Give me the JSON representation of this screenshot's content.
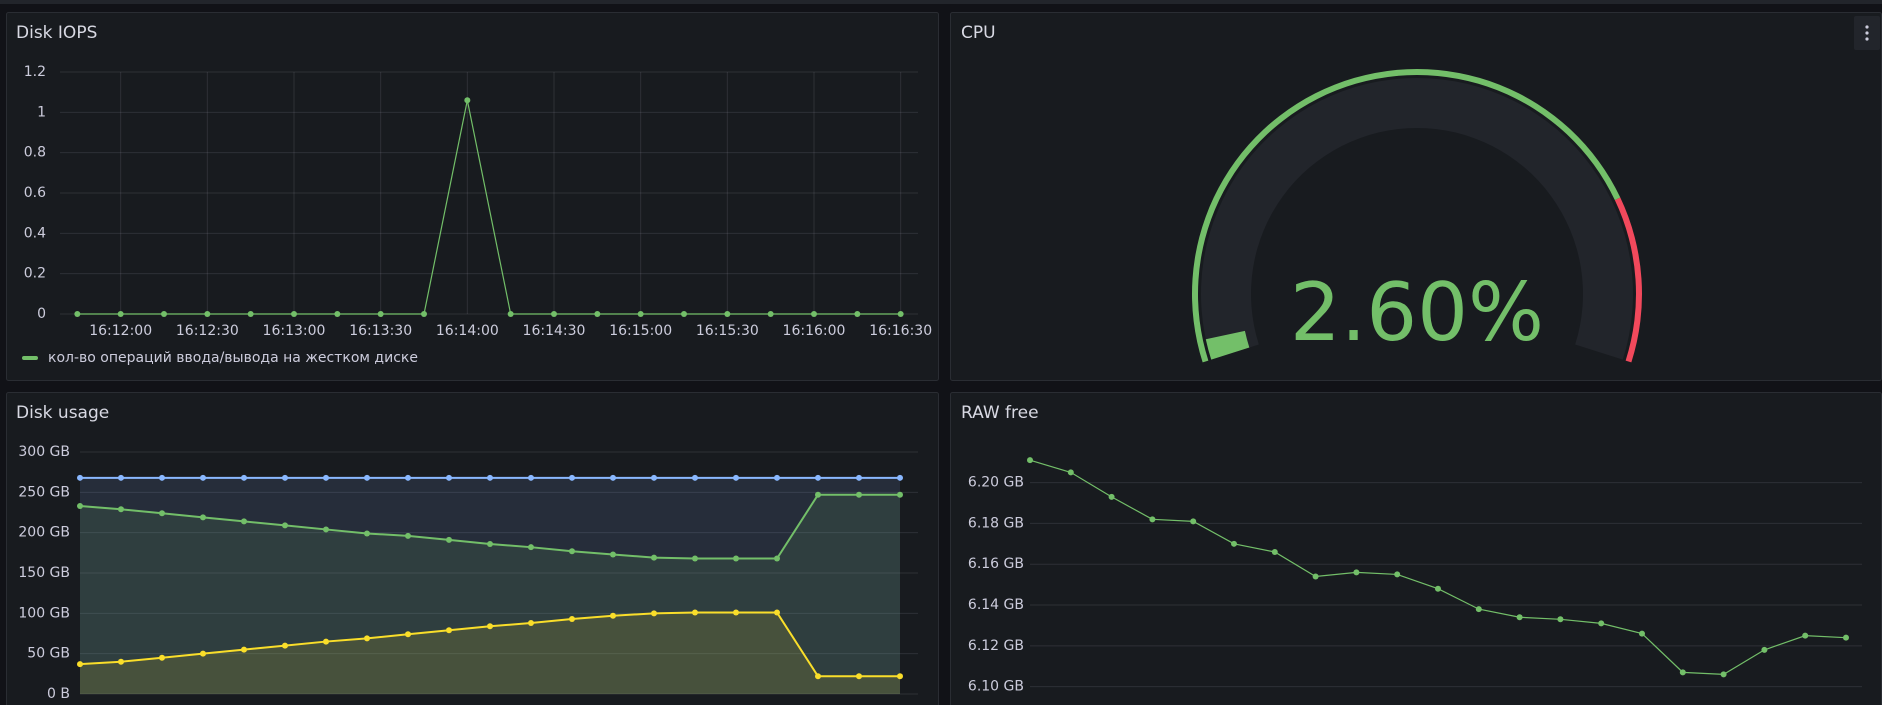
{
  "chart_data": [
    {
      "type": "line",
      "title": "Disk IOPS",
      "x": [
        "16:11:45",
        "16:12:00",
        "16:12:15",
        "16:12:30",
        "16:12:45",
        "16:13:00",
        "16:13:15",
        "16:13:30",
        "16:13:45",
        "16:14:00",
        "16:14:15",
        "16:14:30",
        "16:14:45",
        "16:15:00",
        "16:15:15",
        "16:15:30",
        "16:15:45",
        "16:16:00",
        "16:16:15",
        "16:16:30"
      ],
      "xlim": [
        "16:11:39",
        "16:16:36"
      ],
      "xticks": [
        "16:12:00",
        "16:12:30",
        "16:13:00",
        "16:13:30",
        "16:14:00",
        "16:14:30",
        "16:15:00",
        "16:15:30",
        "16:16:00",
        "16:16:30"
      ],
      "ylim": [
        0,
        1.2
      ],
      "yticks": [
        0,
        0.2,
        0.4,
        0.6,
        0.8,
        1,
        1.2
      ],
      "grid": true,
      "legend": "bottom-left",
      "series": [
        {
          "name": "кол-во операций ввода/вывода на жестком диске",
          "color": "#73bf69",
          "values": [
            0,
            0,
            0,
            0,
            0,
            0,
            0,
            0,
            0,
            1.06,
            0,
            0,
            0,
            0,
            0,
            0,
            0,
            0,
            0,
            0
          ]
        }
      ]
    },
    {
      "type": "gauge",
      "title": "CPU",
      "values": [
        2.6
      ],
      "value_labels": [
        "2.60%"
      ],
      "ylim": [
        0,
        100
      ],
      "thresholds": [
        {
          "value": 0,
          "color": "#73bf69"
        },
        {
          "value": 80,
          "color": "#f2495c"
        }
      ]
    },
    {
      "type": "line",
      "title": "Disk usage",
      "fill": true,
      "grid": true,
      "ylim": [
        0,
        300
      ],
      "yticks": [
        {
          "value": 0,
          "label": "0 B"
        },
        {
          "value": 50,
          "label": "50 GB"
        },
        {
          "value": 100,
          "label": "100 GB"
        },
        {
          "value": 150,
          "label": "150 GB"
        },
        {
          "value": 200,
          "label": "200 GB"
        },
        {
          "value": 250,
          "label": "250 GB"
        },
        {
          "value": 300,
          "label": "300 GB"
        }
      ],
      "series": [
        {
          "color": "#8ab8ff",
          "values": [
            268,
            268,
            268,
            268,
            268,
            268,
            268,
            268,
            268,
            268,
            268,
            268,
            268,
            268,
            268,
            268,
            268,
            268,
            268,
            268,
            268
          ]
        },
        {
          "color": "#73bf69",
          "values": [
            233,
            229,
            224,
            219,
            214,
            209,
            204,
            199,
            196,
            191,
            186,
            182,
            177,
            173,
            169,
            168,
            168,
            168,
            247,
            247,
            247
          ]
        },
        {
          "color": "#fade2a",
          "values": [
            37,
            40,
            45,
            50,
            55,
            60,
            65,
            69,
            74,
            79,
            84,
            88,
            93,
            97,
            100,
            101,
            101,
            101,
            22,
            22,
            22
          ]
        }
      ]
    },
    {
      "type": "line",
      "title": "RAW free",
      "grid": true,
      "ylim": [
        6.091,
        6.215
      ],
      "yticks": [
        {
          "value": 6.1,
          "label": "6.10 GB"
        },
        {
          "value": 6.12,
          "label": "6.12 GB"
        },
        {
          "value": 6.14,
          "label": "6.14 GB"
        },
        {
          "value": 6.16,
          "label": "6.16 GB"
        },
        {
          "value": 6.18,
          "label": "6.18 GB"
        },
        {
          "value": 6.2,
          "label": "6.20 GB"
        }
      ],
      "series": [
        {
          "color": "#73bf69",
          "values": [
            6.211,
            6.205,
            6.193,
            6.182,
            6.181,
            6.17,
            6.166,
            6.154,
            6.156,
            6.155,
            6.148,
            6.138,
            6.134,
            6.133,
            6.131,
            6.126,
            6.107,
            6.106,
            6.118,
            6.125,
            6.124
          ]
        }
      ]
    }
  ]
}
